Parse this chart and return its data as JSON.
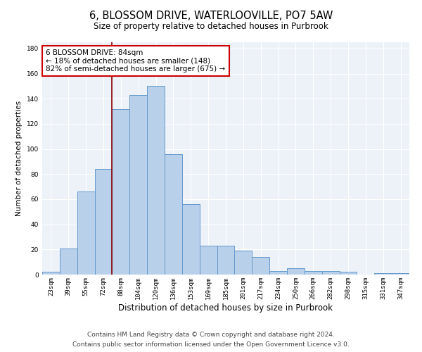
{
  "title": "6, BLOSSOM DRIVE, WATERLOOVILLE, PO7 5AW",
  "subtitle": "Size of property relative to detached houses in Purbrook",
  "xlabel": "Distribution of detached houses by size in Purbrook",
  "ylabel": "Number of detached properties",
  "categories": [
    "23sqm",
    "39sqm",
    "55sqm",
    "72sqm",
    "88sqm",
    "104sqm",
    "120sqm",
    "136sqm",
    "153sqm",
    "169sqm",
    "185sqm",
    "201sqm",
    "217sqm",
    "234sqm",
    "250sqm",
    "266sqm",
    "282sqm",
    "298sqm",
    "315sqm",
    "331sqm",
    "347sqm"
  ],
  "values": [
    2,
    21,
    66,
    84,
    132,
    143,
    150,
    96,
    56,
    23,
    23,
    19,
    14,
    3,
    5,
    3,
    3,
    2,
    0,
    1,
    1
  ],
  "bar_color": "#b8d0ea",
  "bar_edge_color": "#6699cc",
  "vline_x_index": 3.5,
  "vline_color": "#880000",
  "annotation_text": "6 BLOSSOM DRIVE: 84sqm\n← 18% of detached houses are smaller (148)\n82% of semi-detached houses are larger (675) →",
  "annotation_box_color": "#ffffff",
  "annotation_box_edge": "#cc0000",
  "ylim": [
    0,
    185
  ],
  "yticks": [
    0,
    20,
    40,
    60,
    80,
    100,
    120,
    140,
    160,
    180
  ],
  "footer1": "Contains HM Land Registry data © Crown copyright and database right 2024.",
  "footer2": "Contains public sector information licensed under the Open Government Licence v3.0.",
  "bg_color": "#edf2f9",
  "title_fontsize": 10.5,
  "subtitle_fontsize": 8.5,
  "xlabel_fontsize": 8.5,
  "ylabel_fontsize": 7.5,
  "tick_fontsize": 6.5,
  "annotation_fontsize": 7.5,
  "footer_fontsize": 6.5
}
